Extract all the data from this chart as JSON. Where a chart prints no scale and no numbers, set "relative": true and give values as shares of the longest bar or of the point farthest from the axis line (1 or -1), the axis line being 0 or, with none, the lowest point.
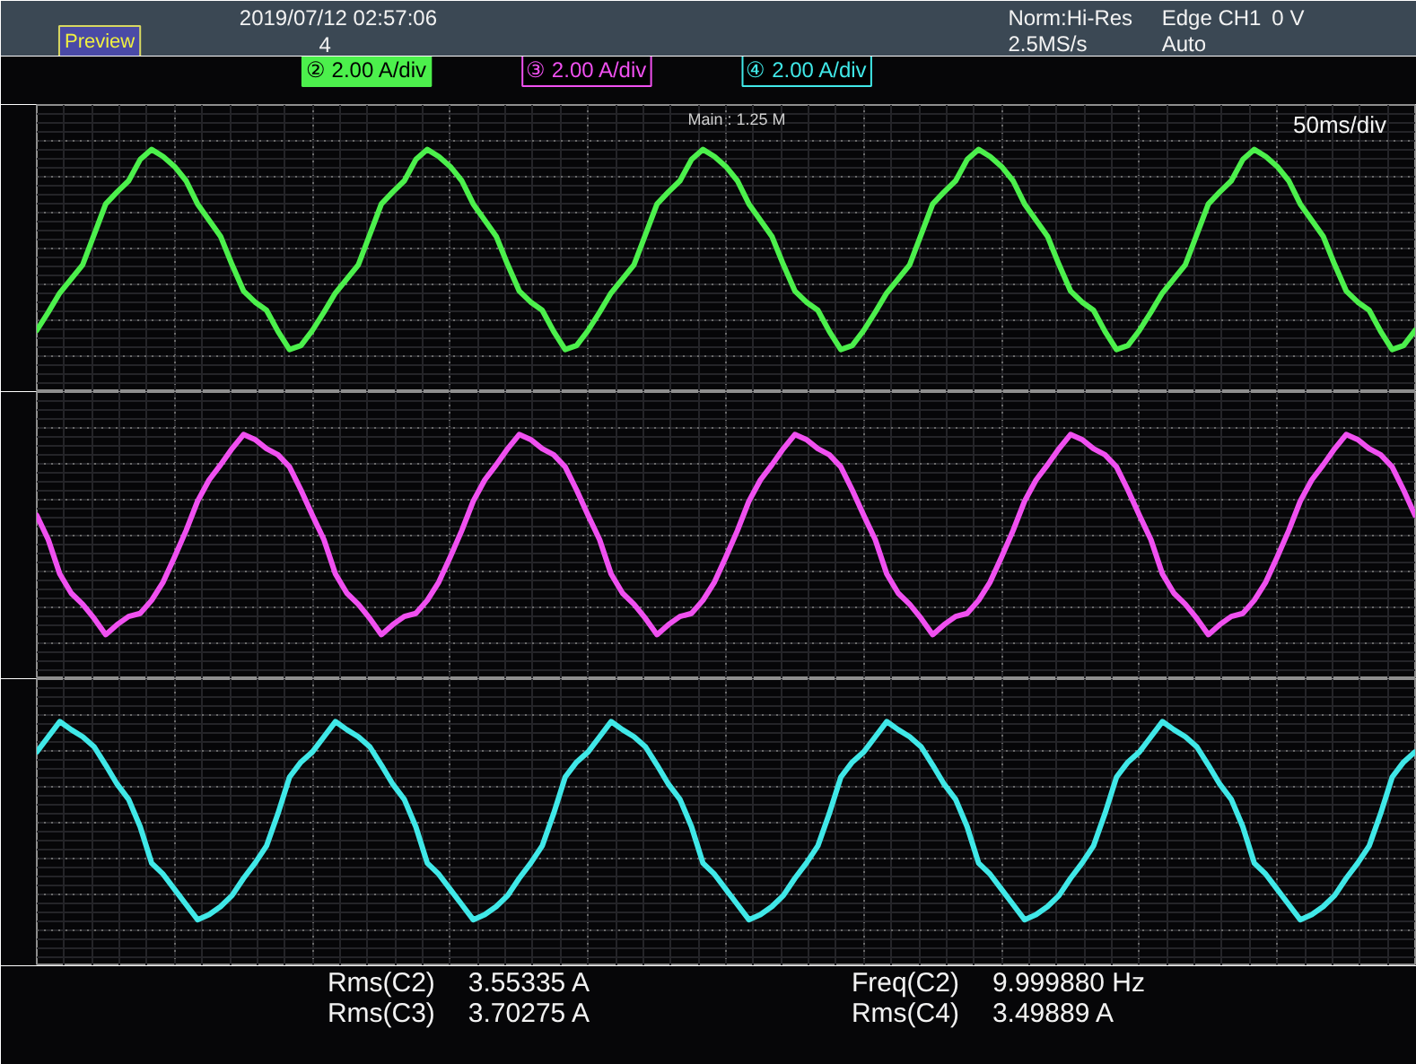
{
  "chart_data": [
    {
      "type": "line",
      "relative": true,
      "grid": true,
      "color": "#4cf04c",
      "categories": [
        null,
        null,
        null,
        null,
        null,
        null,
        null,
        null,
        null,
        null,
        null,
        null,
        null,
        null,
        null,
        null,
        null,
        null,
        null,
        null,
        null,
        null,
        null,
        null,
        null,
        null,
        null,
        null,
        null,
        null,
        null,
        null,
        null,
        null,
        null,
        null,
        null,
        null,
        null,
        null,
        null,
        null,
        null,
        null,
        null,
        null,
        null,
        null,
        null,
        null,
        null,
        null,
        null,
        null,
        null,
        null,
        null,
        null,
        null,
        null,
        null,
        null,
        null,
        null,
        null,
        null,
        null,
        null,
        null,
        null,
        null,
        null,
        null,
        null,
        null,
        null,
        null,
        null,
        null,
        null,
        null,
        null,
        null,
        null,
        null,
        null,
        null,
        null,
        null,
        null,
        null,
        null,
        null,
        null,
        null,
        null,
        null,
        null,
        null,
        null,
        null,
        null,
        null,
        null,
        null,
        null,
        null,
        null,
        null,
        null,
        null,
        null,
        null,
        null,
        null,
        null,
        null,
        null,
        null,
        null,
        null
      ],
      "values": [
        -0.81,
        -0.63,
        -0.44,
        -0.3,
        -0.16,
        0.14,
        0.44,
        0.56,
        0.67,
        0.88,
        0.98,
        0.91,
        0.81,
        0.67,
        0.44,
        0.28,
        0.12,
        -0.16,
        -0.42,
        -0.53,
        -0.61,
        -0.82,
        -1,
        -0.96,
        -0.81,
        -0.63,
        -0.44,
        -0.3,
        -0.16,
        0.14,
        0.44,
        0.56,
        0.67,
        0.88,
        0.98,
        0.91,
        0.81,
        0.67,
        0.44,
        0.28,
        0.12,
        -0.16,
        -0.42,
        -0.53,
        -0.61,
        -0.82,
        -1,
        -0.96,
        -0.81,
        -0.63,
        -0.44,
        -0.3,
        -0.16,
        0.14,
        0.44,
        0.56,
        0.67,
        0.88,
        0.98,
        0.91,
        0.81,
        0.67,
        0.44,
        0.28,
        0.12,
        -0.16,
        -0.42,
        -0.53,
        -0.61,
        -0.82,
        -1,
        -0.96,
        -0.81,
        -0.63,
        -0.44,
        -0.3,
        -0.16,
        0.14,
        0.44,
        0.56,
        0.67,
        0.88,
        0.98,
        0.91,
        0.81,
        0.67,
        0.44,
        0.28,
        0.12,
        -0.16,
        -0.42,
        -0.53,
        -0.61,
        -0.82,
        -1,
        -0.96,
        -0.81,
        -0.63,
        -0.44,
        -0.3,
        -0.16,
        0.14,
        0.44,
        0.56,
        0.67,
        0.88,
        0.98,
        0.91,
        0.81,
        0.67,
        0.44,
        0.28,
        0.12,
        -0.16,
        -0.42,
        -0.53,
        -0.61,
        -0.82,
        -1,
        -0.96,
        -0.81
      ],
      "annotations": [
        "Preview",
        "2019/07/12 02:57:06",
        "4",
        "Norm:Hi-Res",
        "2.5MS/s",
        "Edge CH1",
        "0 V",
        "Auto",
        "② 2.00 A/div",
        "Main : 1.25 M",
        "50ms/div",
        "Rms(C2)",
        "3.55335 A",
        "Freq(C2)",
        "9.999880 Hz"
      ]
    },
    {
      "type": "line",
      "relative": true,
      "grid": true,
      "color": "#f050f0",
      "categories": [
        null,
        null,
        null,
        null,
        null,
        null,
        null,
        null,
        null,
        null,
        null,
        null,
        null,
        null,
        null,
        null,
        null,
        null,
        null,
        null,
        null,
        null,
        null,
        null,
        null,
        null,
        null,
        null,
        null,
        null,
        null,
        null,
        null,
        null,
        null,
        null,
        null,
        null,
        null,
        null,
        null,
        null,
        null,
        null,
        null,
        null,
        null,
        null,
        null,
        null,
        null,
        null,
        null,
        null,
        null,
        null,
        null,
        null,
        null,
        null,
        null,
        null,
        null,
        null,
        null,
        null,
        null,
        null,
        null,
        null,
        null,
        null,
        null,
        null,
        null,
        null,
        null,
        null,
        null,
        null,
        null,
        null,
        null,
        null,
        null,
        null,
        null,
        null,
        null,
        null,
        null,
        null,
        null,
        null,
        null,
        null,
        null,
        null,
        null,
        null,
        null,
        null,
        null,
        null,
        null,
        null,
        null,
        null,
        null,
        null,
        null,
        null,
        null,
        null,
        null,
        null,
        null,
        null,
        null,
        null,
        null
      ],
      "values": [
        0.2,
        -0.04,
        -0.38,
        -0.57,
        -0.68,
        -0.82,
        -0.98,
        -0.88,
        -0.8,
        -0.77,
        -0.64,
        -0.46,
        -0.21,
        0.05,
        0.34,
        0.55,
        0.7,
        0.86,
        1,
        0.95,
        0.86,
        0.8,
        0.68,
        0.45,
        0.2,
        -0.04,
        -0.38,
        -0.57,
        -0.68,
        -0.82,
        -0.98,
        -0.88,
        -0.8,
        -0.77,
        -0.64,
        -0.46,
        -0.21,
        0.05,
        0.34,
        0.55,
        0.7,
        0.86,
        1,
        0.95,
        0.86,
        0.8,
        0.68,
        0.45,
        0.2,
        -0.04,
        -0.38,
        -0.57,
        -0.68,
        -0.82,
        -0.98,
        -0.88,
        -0.8,
        -0.77,
        -0.64,
        -0.46,
        -0.21,
        0.05,
        0.34,
        0.55,
        0.7,
        0.86,
        1,
        0.95,
        0.86,
        0.8,
        0.68,
        0.45,
        0.2,
        -0.04,
        -0.38,
        -0.57,
        -0.68,
        -0.82,
        -0.98,
        -0.88,
        -0.8,
        -0.77,
        -0.64,
        -0.46,
        -0.21,
        0.05,
        0.34,
        0.55,
        0.7,
        0.86,
        1,
        0.95,
        0.86,
        0.8,
        0.68,
        0.45,
        0.2,
        -0.04,
        -0.38,
        -0.57,
        -0.68,
        -0.82,
        -0.98,
        -0.88,
        -0.8,
        -0.77,
        -0.64,
        -0.46,
        -0.21,
        0.05,
        0.34,
        0.55,
        0.7,
        0.86,
        1,
        0.95,
        0.86,
        0.8,
        0.68,
        0.45,
        0.2
      ],
      "annotations": [
        "③ 2.00 A/div",
        "Rms(C3)",
        "3.70275 A"
      ]
    },
    {
      "type": "line",
      "relative": true,
      "grid": true,
      "color": "#40e8e8",
      "categories": [
        null,
        null,
        null,
        null,
        null,
        null,
        null,
        null,
        null,
        null,
        null,
        null,
        null,
        null,
        null,
        null,
        null,
        null,
        null,
        null,
        null,
        null,
        null,
        null,
        null,
        null,
        null,
        null,
        null,
        null,
        null,
        null,
        null,
        null,
        null,
        null,
        null,
        null,
        null,
        null,
        null,
        null,
        null,
        null,
        null,
        null,
        null,
        null,
        null,
        null,
        null,
        null,
        null,
        null,
        null,
        null,
        null,
        null,
        null,
        null,
        null,
        null,
        null,
        null,
        null,
        null,
        null,
        null,
        null,
        null,
        null,
        null,
        null,
        null,
        null,
        null,
        null,
        null,
        null,
        null,
        null,
        null,
        null,
        null,
        null,
        null,
        null,
        null,
        null,
        null,
        null,
        null,
        null,
        null,
        null,
        null,
        null,
        null,
        null,
        null,
        null,
        null,
        null,
        null,
        null,
        null,
        null,
        null,
        null,
        null,
        null,
        null,
        null,
        null,
        null,
        null,
        null,
        null,
        null,
        null,
        null
      ],
      "values": [
        0.7,
        0.85,
        1,
        0.92,
        0.85,
        0.75,
        0.57,
        0.38,
        0.23,
        -0.04,
        -0.4,
        -0.51,
        -0.66,
        -0.81,
        -0.96,
        -0.91,
        -0.83,
        -0.72,
        -0.55,
        -0.4,
        -0.23,
        0.09,
        0.45,
        0.6,
        0.7,
        0.85,
        1,
        0.92,
        0.85,
        0.75,
        0.57,
        0.38,
        0.23,
        -0.04,
        -0.4,
        -0.51,
        -0.66,
        -0.81,
        -0.96,
        -0.91,
        -0.83,
        -0.72,
        -0.55,
        -0.4,
        -0.23,
        0.09,
        0.45,
        0.6,
        0.7,
        0.85,
        1,
        0.92,
        0.85,
        0.75,
        0.57,
        0.38,
        0.23,
        -0.04,
        -0.4,
        -0.51,
        -0.66,
        -0.81,
        -0.96,
        -0.91,
        -0.83,
        -0.72,
        -0.55,
        -0.4,
        -0.23,
        0.09,
        0.45,
        0.6,
        0.7,
        0.85,
        1,
        0.92,
        0.85,
        0.75,
        0.57,
        0.38,
        0.23,
        -0.04,
        -0.4,
        -0.51,
        -0.66,
        -0.81,
        -0.96,
        -0.91,
        -0.83,
        -0.72,
        -0.55,
        -0.4,
        -0.23,
        0.09,
        0.45,
        0.6,
        0.7,
        0.85,
        1,
        0.92,
        0.85,
        0.75,
        0.57,
        0.38,
        0.23,
        -0.04,
        -0.4,
        -0.51,
        -0.66,
        -0.81,
        -0.96,
        -0.91,
        -0.83,
        -0.72,
        -0.55,
        -0.4,
        -0.23,
        0.09,
        0.45,
        0.6,
        0.7
      ],
      "annotations": [
        "④ 2.00 A/div",
        "Rms(C4)",
        "3.49889 A"
      ]
    }
  ]
}
